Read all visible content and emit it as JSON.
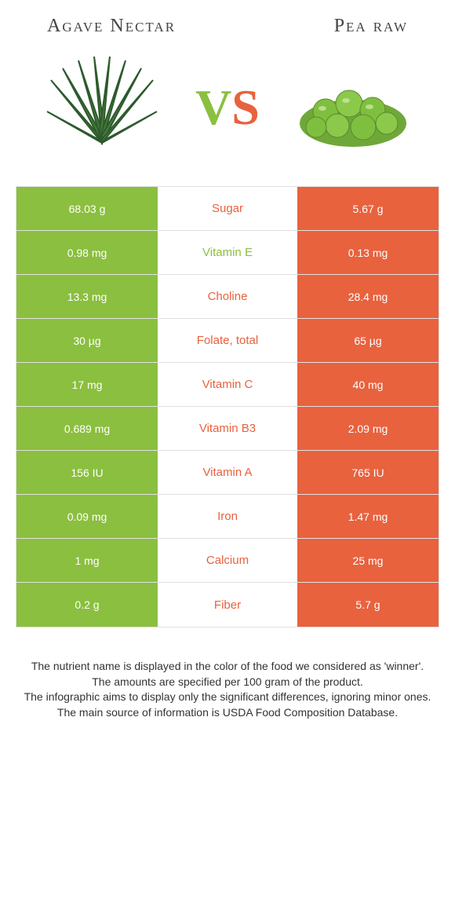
{
  "colors": {
    "left": "#8bbf3f",
    "right": "#e8623e",
    "bg": "#ffffff",
    "border": "#e0e0e0"
  },
  "header": {
    "left_title": "Agave Nectar",
    "right_title": "Pea raw",
    "vs_v": "V",
    "vs_s": "S"
  },
  "rows": [
    {
      "left": "68.03 g",
      "label": "Sugar",
      "right": "5.67 g",
      "winner": "right"
    },
    {
      "left": "0.98 mg",
      "label": "Vitamin E",
      "right": "0.13 mg",
      "winner": "left"
    },
    {
      "left": "13.3 mg",
      "label": "Choline",
      "right": "28.4 mg",
      "winner": "right"
    },
    {
      "left": "30 µg",
      "label": "Folate, total",
      "right": "65 µg",
      "winner": "right"
    },
    {
      "left": "17 mg",
      "label": "Vitamin C",
      "right": "40 mg",
      "winner": "right"
    },
    {
      "left": "0.689 mg",
      "label": "Vitamin B3",
      "right": "2.09 mg",
      "winner": "right"
    },
    {
      "left": "156 IU",
      "label": "Vitamin A",
      "right": "765 IU",
      "winner": "right"
    },
    {
      "left": "0.09 mg",
      "label": "Iron",
      "right": "1.47 mg",
      "winner": "right"
    },
    {
      "left": "1 mg",
      "label": "Calcium",
      "right": "25 mg",
      "winner": "right"
    },
    {
      "left": "0.2 g",
      "label": "Fiber",
      "right": "5.7 g",
      "winner": "right"
    }
  ],
  "footer": {
    "line1": "The nutrient name is displayed in the color of the food we considered as 'winner'.",
    "line2": "The amounts are specified per 100 gram of the product.",
    "line3": "The infographic aims to display only the significant differences, ignoring minor ones.",
    "line4": "The main source of information is USDA Food Composition Database."
  }
}
